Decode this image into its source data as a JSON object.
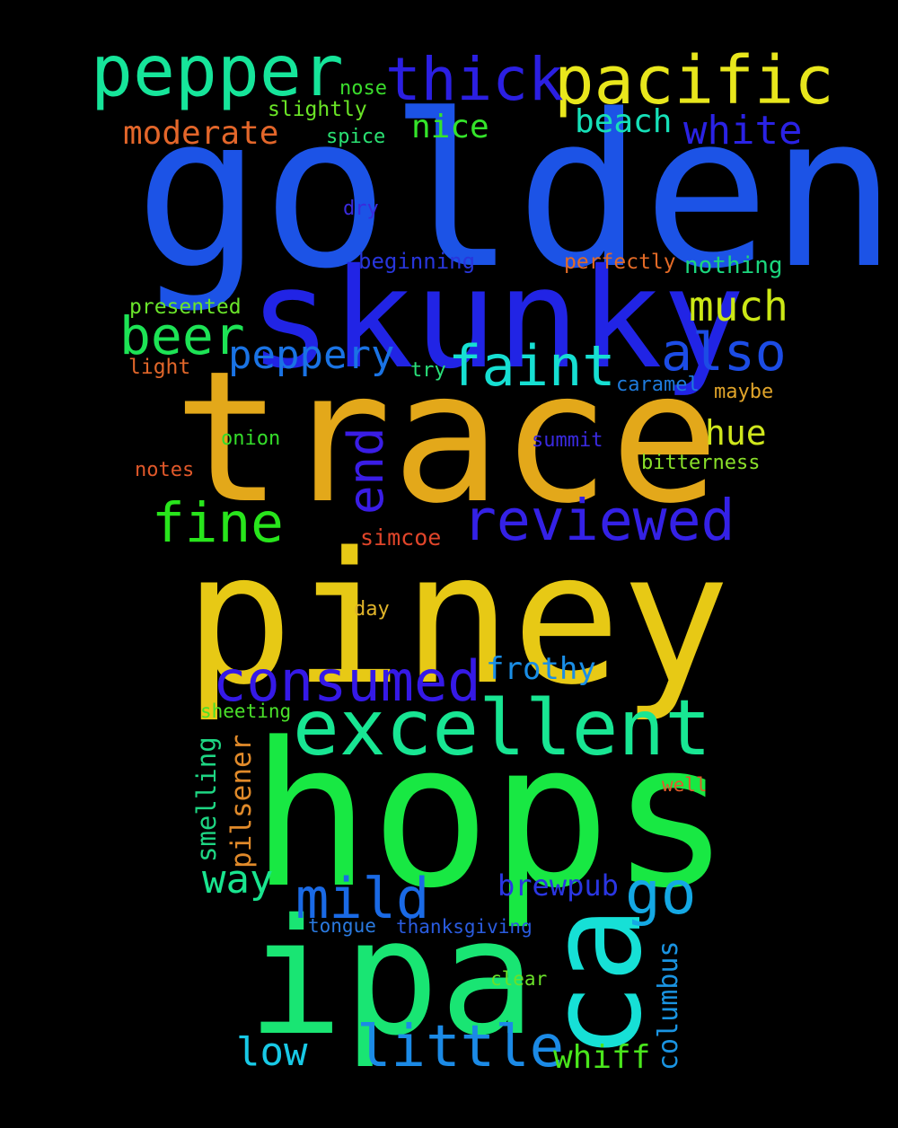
{
  "words": [
    {
      "id": "golden",
      "text": "golden",
      "color": "#1c53e6"
    },
    {
      "id": "piney",
      "text": "piney",
      "color": "#e7c915"
    },
    {
      "id": "trace",
      "text": "trace",
      "color": "#e3a81a"
    },
    {
      "id": "hops",
      "text": "hops",
      "color": "#18e843"
    },
    {
      "id": "skunky",
      "text": "skunky",
      "color": "#2124e5"
    },
    {
      "id": "ipa",
      "text": "ipa",
      "color": "#19e573"
    },
    {
      "id": "ca",
      "text": "ca",
      "color": "#16e0d6"
    },
    {
      "id": "excellent",
      "text": "excellent",
      "color": "#18e693"
    },
    {
      "id": "pepper",
      "text": "pepper",
      "color": "#16e59a"
    },
    {
      "id": "pacific",
      "text": "pacific",
      "color": "#e8e61c"
    },
    {
      "id": "thick",
      "text": "thick",
      "color": "#2b1fe2"
    },
    {
      "id": "reviewed",
      "text": "reviewed",
      "color": "#3421e6"
    },
    {
      "id": "consumed",
      "text": "consumed",
      "color": "#3519e7"
    },
    {
      "id": "little",
      "text": "little",
      "color": "#1b8ae6"
    },
    {
      "id": "faint",
      "text": "faint",
      "color": "#16dfd2"
    },
    {
      "id": "beer",
      "text": "beer",
      "color": "#1de355"
    },
    {
      "id": "fine",
      "text": "fine",
      "color": "#28e51c"
    },
    {
      "id": "mild",
      "text": "mild",
      "color": "#1a6ae6"
    },
    {
      "id": "also",
      "text": "also",
      "color": "#1c4ce5"
    },
    {
      "id": "end",
      "text": "end",
      "color": "#3a1de6"
    },
    {
      "id": "peppery",
      "text": "peppery",
      "color": "#1a73e4"
    },
    {
      "id": "go",
      "text": "go",
      "color": "#14a8e4"
    },
    {
      "id": "much",
      "text": "much",
      "color": "#cce816"
    },
    {
      "id": "white",
      "text": "white",
      "color": "#2a22e4"
    },
    {
      "id": "way",
      "text": "way",
      "color": "#19e58f"
    },
    {
      "id": "low",
      "text": "low",
      "color": "#18c9e6"
    },
    {
      "id": "whiff",
      "text": "whiff",
      "color": "#4ae61c"
    },
    {
      "id": "frothy",
      "text": "frothy",
      "color": "#1a8ee6"
    },
    {
      "id": "hue",
      "text": "hue",
      "color": "#cfe61c"
    },
    {
      "id": "moderate",
      "text": "moderate",
      "color": "#e3662a"
    },
    {
      "id": "nice",
      "text": "nice",
      "color": "#34e42a"
    },
    {
      "id": "beach",
      "text": "beach",
      "color": "#16e0b8"
    },
    {
      "id": "brewpub",
      "text": "brewpub",
      "color": "#2a36e2"
    },
    {
      "id": "pilsener",
      "text": "pilsener",
      "color": "#e08a2a"
    },
    {
      "id": "columbus",
      "text": "columbus",
      "color": "#1a94e2"
    },
    {
      "id": "smelling",
      "text": "smelling",
      "color": "#1ed683"
    },
    {
      "id": "nothing",
      "text": "nothing",
      "color": "#1bd67d"
    },
    {
      "id": "simcoe",
      "text": "simcoe",
      "color": "#e0452a"
    },
    {
      "id": "beginning",
      "text": "beginning",
      "color": "#2836dc"
    },
    {
      "id": "perfectly",
      "text": "perfectly",
      "color": "#e36a26"
    },
    {
      "id": "presented",
      "text": "presented",
      "color": "#6ae42a"
    },
    {
      "id": "slightly",
      "text": "slightly",
      "color": "#6ae426"
    },
    {
      "id": "nose",
      "text": "nose",
      "color": "#3adc2c"
    },
    {
      "id": "spice",
      "text": "spice",
      "color": "#2ae072"
    },
    {
      "id": "dry",
      "text": "dry",
      "color": "#3a2adc"
    },
    {
      "id": "light",
      "text": "light",
      "color": "#e0662a"
    },
    {
      "id": "try",
      "text": "try",
      "color": "#2ae07a"
    },
    {
      "id": "caramel",
      "text": "caramel",
      "color": "#1e7adc"
    },
    {
      "id": "maybe",
      "text": "maybe",
      "color": "#e0a42a"
    },
    {
      "id": "onion",
      "text": "onion",
      "color": "#34dc2a"
    },
    {
      "id": "summit",
      "text": "summit",
      "color": "#3a2ae0"
    },
    {
      "id": "notes",
      "text": "notes",
      "color": "#e0582a"
    },
    {
      "id": "bitterness",
      "text": "bitterness",
      "color": "#8ae02a"
    },
    {
      "id": "day",
      "text": "day",
      "color": "#e0b42a"
    },
    {
      "id": "sheeting",
      "text": "sheeting",
      "color": "#4ae02a"
    },
    {
      "id": "well",
      "text": "well",
      "color": "#e05a2a"
    },
    {
      "id": "tongue",
      "text": "tongue",
      "color": "#2a7ae0"
    },
    {
      "id": "thanksgiving",
      "text": "thanksgiving",
      "color": "#2a5ce0"
    },
    {
      "id": "clear",
      "text": "clear",
      "color": "#6ae02a"
    }
  ]
}
